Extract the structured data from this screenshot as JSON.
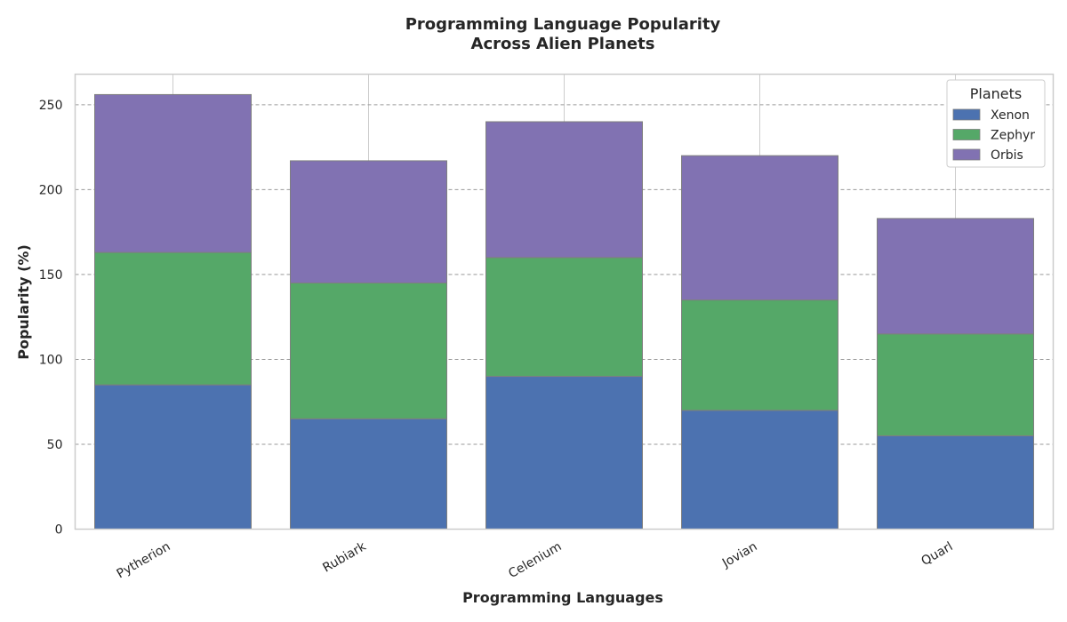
{
  "chart_data": {
    "type": "bar",
    "stacked": true,
    "title_lines": [
      "Programming Language Popularity",
      "Across Alien Planets"
    ],
    "xlabel": "Programming Languages",
    "ylabel": "Popularity (%)",
    "categories": [
      "Pytherion",
      "Rubiark",
      "Celenium",
      "Jovian",
      "Quarl"
    ],
    "series": [
      {
        "name": "Xenon",
        "values": [
          85,
          65,
          90,
          70,
          55
        ],
        "color": "#4c72b0"
      },
      {
        "name": "Zephyr",
        "values": [
          78,
          80,
          70,
          65,
          60
        ],
        "color": "#55a868"
      },
      {
        "name": "Orbis",
        "values": [
          93,
          72,
          80,
          85,
          68
        ],
        "color": "#8172b2"
      }
    ],
    "ylim": [
      0,
      268
    ],
    "yticks": [
      0,
      50,
      100,
      150,
      200,
      250
    ],
    "grid": true,
    "legend_title": "Planets",
    "legend_position": "top-right"
  }
}
